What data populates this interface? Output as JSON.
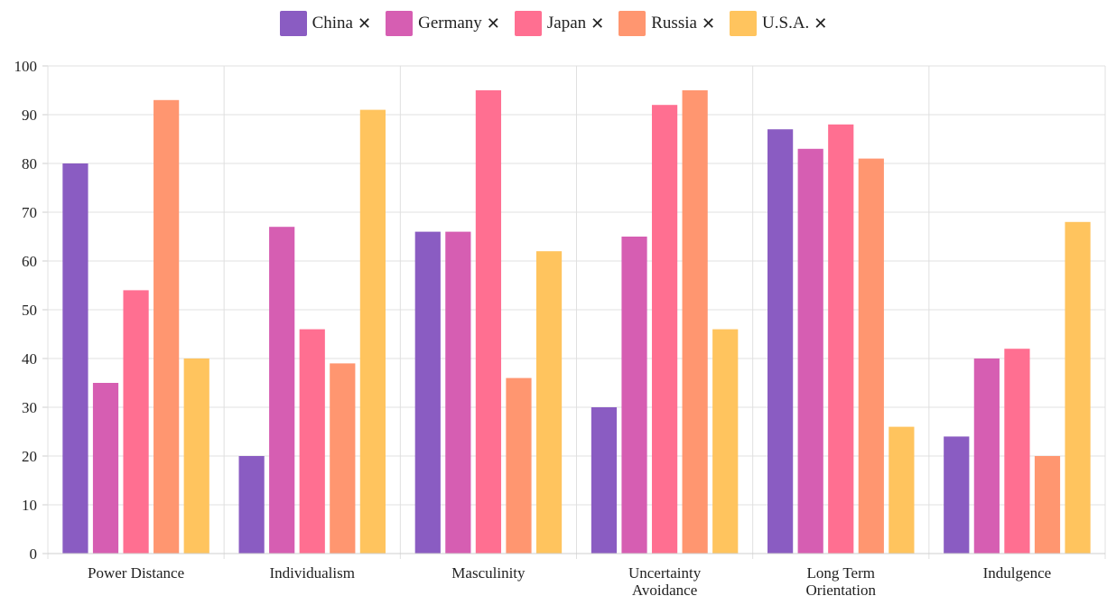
{
  "chart_data": {
    "type": "bar",
    "categories": [
      [
        "Power Distance"
      ],
      [
        "Individualism"
      ],
      [
        "Masculinity"
      ],
      [
        "Uncertainty",
        "Avoidance"
      ],
      [
        "Long Term",
        "Orientation"
      ],
      [
        "Indulgence"
      ]
    ],
    "series": [
      {
        "name": "China",
        "color": "#8a5cc2",
        "values": [
          80,
          20,
          66,
          30,
          87,
          24
        ]
      },
      {
        "name": "Germany",
        "color": "#d65eb2",
        "values": [
          35,
          67,
          66,
          65,
          83,
          40
        ]
      },
      {
        "name": "Japan",
        "color": "#ff6f91",
        "values": [
          54,
          46,
          95,
          92,
          88,
          42
        ]
      },
      {
        "name": "Russia",
        "color": "#ff9670",
        "values": [
          93,
          39,
          36,
          95,
          81,
          20
        ]
      },
      {
        "name": "U.S.A.",
        "color": "#ffc45e",
        "values": [
          40,
          91,
          62,
          46,
          26,
          68
        ]
      }
    ],
    "ylim": [
      0,
      100
    ],
    "yticks": [
      0,
      10,
      20,
      30,
      40,
      50,
      60,
      70,
      80,
      90,
      100
    ],
    "grid": true,
    "legend_position": "top-center",
    "legend_remove_icon": "close-icon",
    "legend_remove_glyph": "✕"
  }
}
